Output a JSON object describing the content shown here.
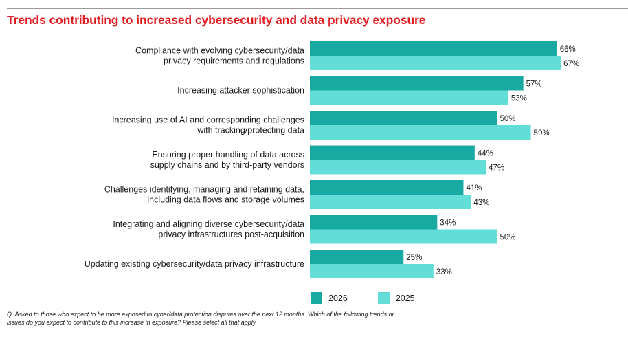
{
  "chart_data": {
    "type": "bar",
    "orientation": "horizontal",
    "title": "Trends contributing to increased cybersecurity and data privacy exposure",
    "categories": [
      [
        "Compliance with evolving cybersecurity/data",
        "privacy requirements and regulations"
      ],
      [
        "Increasing attacker sophistication"
      ],
      [
        "Increasing use of AI and corresponding challenges",
        "with tracking/protecting data"
      ],
      [
        "Ensuring proper handling of data across",
        "supply chains and by third-party vendors"
      ],
      [
        "Challenges identifying, managing and retaining data,",
        "including data flows and storage volumes"
      ],
      [
        "Integrating and aligning diverse cybersecurity/data",
        "privacy infrastructures post-acquisition"
      ],
      [
        "Updating existing cybersecurity/data privacy infrastructure"
      ]
    ],
    "series": [
      {
        "name": "2026",
        "color": "#17a9a2",
        "values": [
          66,
          57,
          50,
          44,
          41,
          34,
          25
        ]
      },
      {
        "name": "2025",
        "color": "#62ddd8",
        "values": [
          67,
          53,
          59,
          47,
          43,
          50,
          33
        ]
      }
    ],
    "value_suffix": "%",
    "legend_position": "bottom",
    "grid": false
  },
  "footnote": "Q. Asked to those who expect to be more exposed to cyber/data protection disputes over the next 12 months. Which of the following trends or issues do you expect to contribute to this increase in exposure? Please select all that apply."
}
